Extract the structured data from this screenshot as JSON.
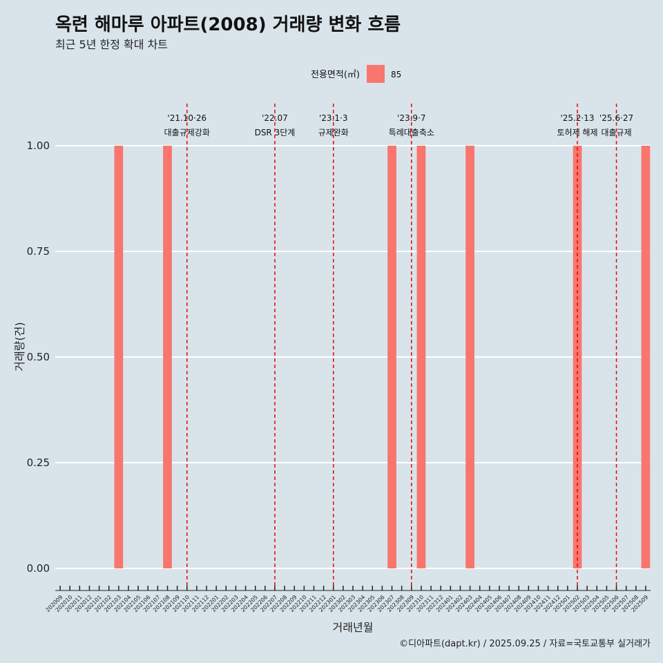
{
  "chart_data": {
    "type": "bar",
    "title": "옥련 해마루 아파트(2008) 거래량 변화 흐름",
    "subtitle": "최근 5년 한정 확대 차트",
    "xlabel": "거래년월",
    "ylabel": "거래량(건)",
    "ylim": [
      0,
      1
    ],
    "y_ticks": [
      "0.00",
      "0.25",
      "0.50",
      "0.75",
      "1.00"
    ],
    "legend": {
      "title": "전용면적(㎡)",
      "position": "top",
      "entries": [
        {
          "label": "85",
          "color": "#f8766d"
        }
      ]
    },
    "categories": [
      "202009",
      "202010",
      "202011",
      "202012",
      "202101",
      "202102",
      "202103",
      "202104",
      "202105",
      "202106",
      "202107",
      "202108",
      "202109",
      "202110",
      "202111",
      "202112",
      "202201",
      "202202",
      "202203",
      "202204",
      "202205",
      "202206",
      "202207",
      "202208",
      "202209",
      "202210",
      "202211",
      "202212",
      "202301",
      "202302",
      "202303",
      "202304",
      "202305",
      "202306",
      "202307",
      "202308",
      "202309",
      "202310",
      "202311",
      "202312",
      "202401",
      "202402",
      "202403",
      "202404",
      "202405",
      "202406",
      "202407",
      "202408",
      "202409",
      "202410",
      "202411",
      "202412",
      "202501",
      "202502",
      "202503",
      "202504",
      "202505",
      "202506",
      "202507",
      "202508",
      "202509"
    ],
    "series": [
      {
        "name": "85",
        "color": "#f8766d",
        "values": [
          0,
          0,
          0,
          0,
          0,
          0,
          1,
          0,
          0,
          0,
          0,
          1,
          0,
          0,
          0,
          0,
          0,
          0,
          0,
          0,
          0,
          0,
          0,
          0,
          0,
          0,
          0,
          0,
          0,
          0,
          0,
          0,
          0,
          0,
          1,
          0,
          0,
          1,
          0,
          0,
          0,
          0,
          1,
          0,
          0,
          0,
          0,
          0,
          0,
          0,
          0,
          0,
          0,
          1,
          0,
          0,
          0,
          0,
          0,
          0,
          1
        ]
      }
    ],
    "events": [
      {
        "date_line1": "'21.10·26",
        "date_line2": "대출규제강화",
        "at": "202110",
        "offset": 0.0
      },
      {
        "date_line1": "'22.07",
        "date_line2": "DSR 3단계",
        "at": "202207",
        "offset": 0.0
      },
      {
        "date_line1": "'23.1·3",
        "date_line2": "규제완화",
        "at": "202301",
        "offset": 0.0
      },
      {
        "date_line1": "'23.9·7",
        "date_line2": "특례대출축소",
        "at": "202309",
        "offset": 0.0
      },
      {
        "date_line1": "'25.2·13",
        "date_line2": "토허제 해제",
        "at": "202502",
        "offset": 0.0
      },
      {
        "date_line1": "'25.6·27",
        "date_line2": "대출규제",
        "at": "202506",
        "offset": 0.0
      }
    ]
  },
  "caption": "©디아파트(dapt.kr) / 2025.09.25 / 자료=국토교통부 실거래가"
}
